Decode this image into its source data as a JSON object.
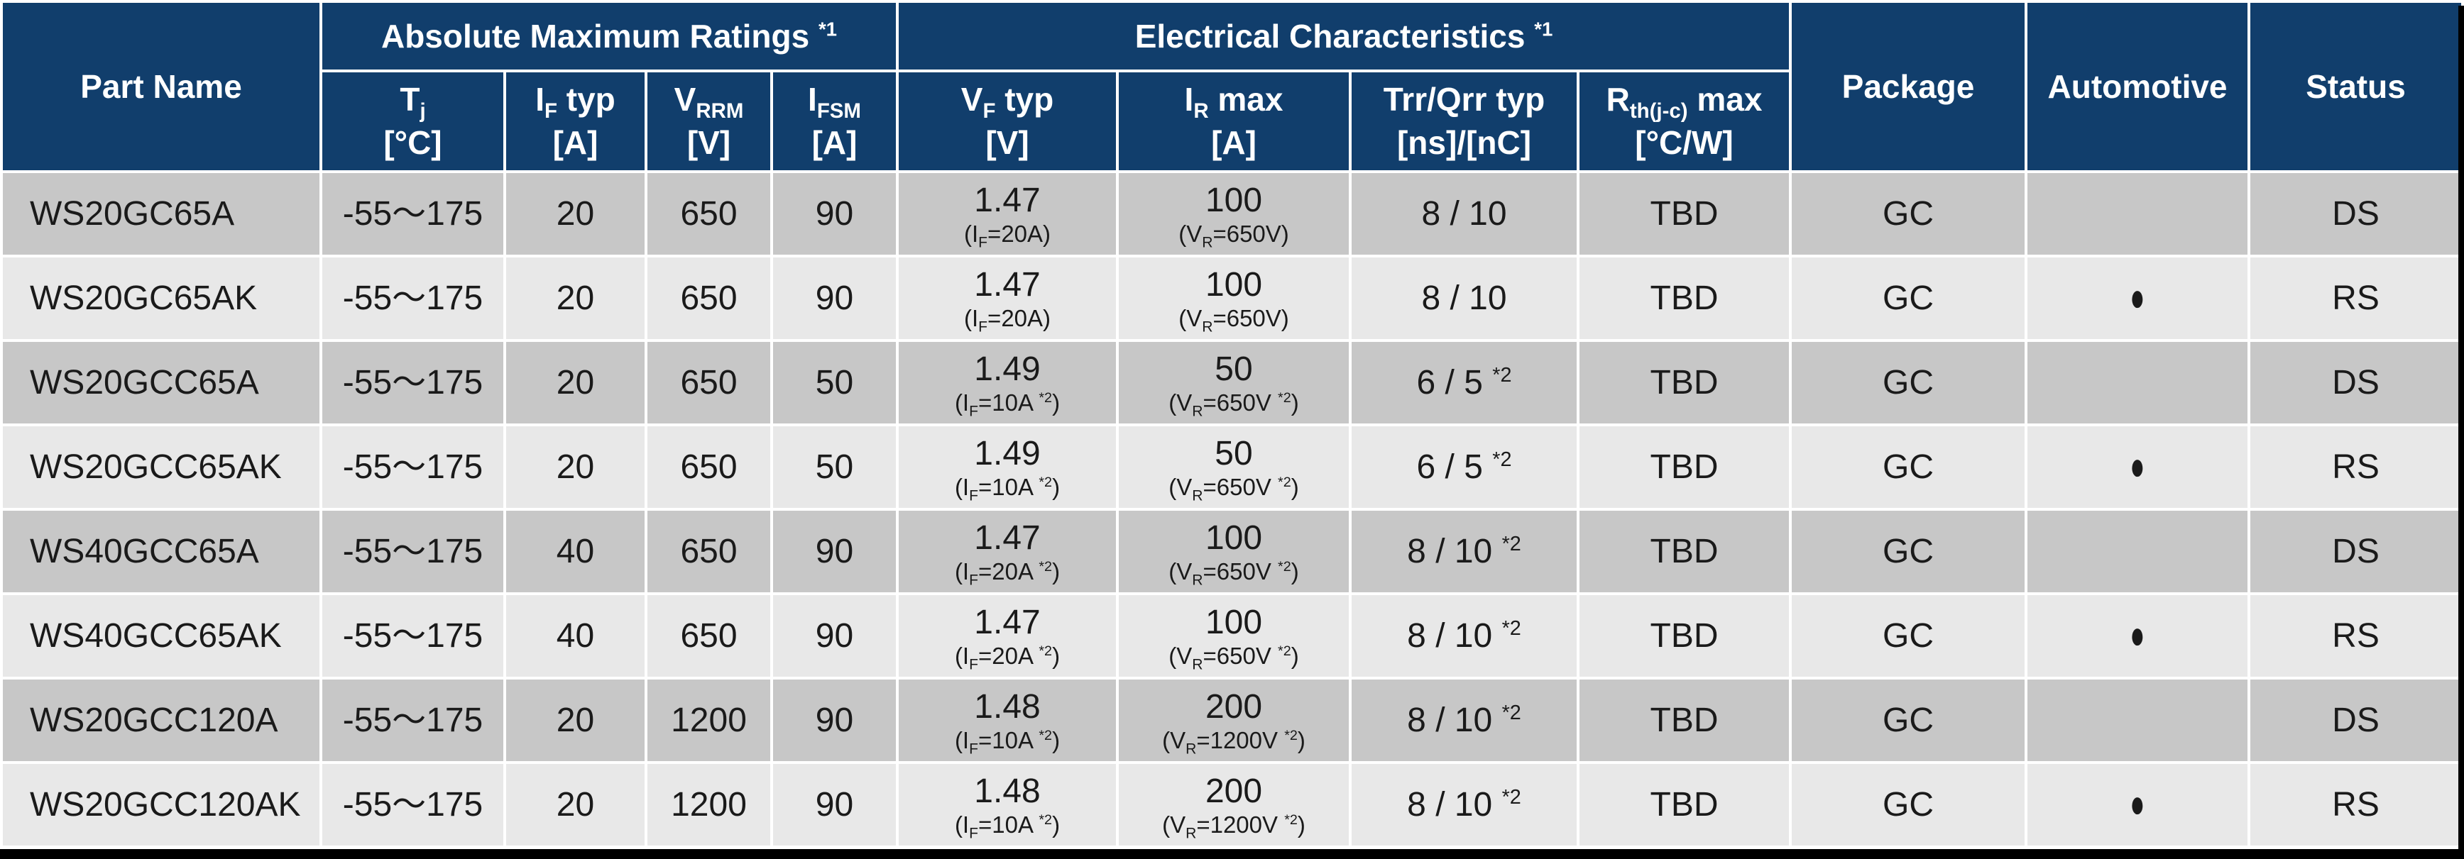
{
  "table": {
    "header": {
      "part_name": "Part Name",
      "groups": [
        {
          "label": "Absolute Maximum Ratings ^{*1}"
        },
        {
          "label": "Electrical Characteristics ^{*1}"
        }
      ],
      "sub_columns": [
        {
          "label": "T_{j}\n[°C]"
        },
        {
          "label": "I_{F} typ\n[A]"
        },
        {
          "label": "V_{RRM}\n[V]"
        },
        {
          "label": "I_{FSM}\n[A]"
        },
        {
          "label": "V_{F} typ\n[V]"
        },
        {
          "label": "I_{R} max\n[A]"
        },
        {
          "label": "Trr/Qrr typ\n[ns]/[nC]"
        },
        {
          "label": "R_{th(j-c)} max\n[°C/W]"
        }
      ],
      "package": "Package",
      "automotive": "Automotive",
      "status": "Status"
    },
    "rows": [
      {
        "name": "WS20GC65A",
        "tj": "-55～175",
        "if_typ": "20",
        "vrrm": "650",
        "ifsm": "90",
        "vf": "1.47",
        "vf_note": "(I_{F}=20A)",
        "ir": "100",
        "ir_note": "(V_{R}=650V)",
        "trr": "8 / 10",
        "rth": "TBD",
        "package": "GC",
        "automotive": "",
        "status": "DS"
      },
      {
        "name": "WS20GC65AK",
        "tj": "-55～175",
        "if_typ": "20",
        "vrrm": "650",
        "ifsm": "90",
        "vf": "1.47",
        "vf_note": "(I_{F}=20A)",
        "ir": "100",
        "ir_note": "(V_{R}=650V)",
        "trr": "8 / 10",
        "rth": "TBD",
        "package": "GC",
        "automotive": "●",
        "status": "RS"
      },
      {
        "name": "WS20GCC65A",
        "tj": "-55～175",
        "if_typ": "20",
        "vrrm": "650",
        "ifsm": "50",
        "vf": "1.49",
        "vf_note": "(I_{F}=10A ^{*2})",
        "ir": "50",
        "ir_note": "(V_{R}=650V ^{*2})",
        "trr": "6 / 5 ^{*2}",
        "rth": "TBD",
        "package": "GC",
        "automotive": "",
        "status": "DS"
      },
      {
        "name": "WS20GCC65AK",
        "tj": "-55～175",
        "if_typ": "20",
        "vrrm": "650",
        "ifsm": "50",
        "vf": "1.49",
        "vf_note": "(I_{F}=10A ^{*2})",
        "ir": "50",
        "ir_note": "(V_{R}=650V ^{*2})",
        "trr": "6 / 5 ^{*2}",
        "rth": "TBD",
        "package": "GC",
        "automotive": "●",
        "status": "RS"
      },
      {
        "name": "WS40GCC65A",
        "tj": "-55～175",
        "if_typ": "40",
        "vrrm": "650",
        "ifsm": "90",
        "vf": "1.47",
        "vf_note": "(I_{F}=20A ^{*2})",
        "ir": "100",
        "ir_note": "(V_{R}=650V ^{*2})",
        "trr": "8 / 10 ^{*2}",
        "rth": "TBD",
        "package": "GC",
        "automotive": "",
        "status": "DS"
      },
      {
        "name": "WS40GCC65AK",
        "tj": "-55～175",
        "if_typ": "40",
        "vrrm": "650",
        "ifsm": "90",
        "vf": "1.47",
        "vf_note": "(I_{F}=20A ^{*2})",
        "ir": "100",
        "ir_note": "(V_{R}=650V ^{*2})",
        "trr": "8 / 10 ^{*2}",
        "rth": "TBD",
        "package": "GC",
        "automotive": "●",
        "status": "RS"
      },
      {
        "name": "WS20GCC120A",
        "tj": "-55～175",
        "if_typ": "20",
        "vrrm": "1200",
        "ifsm": "90",
        "vf": "1.48",
        "vf_note": "(I_{F}=10A ^{*2})",
        "ir": "200",
        "ir_note": "(V_{R}=1200V ^{*2})",
        "trr": "8 / 10 ^{*2}",
        "rth": "TBD",
        "package": "GC",
        "automotive": "",
        "status": "DS"
      },
      {
        "name": "WS20GCC120AK",
        "tj": "-55～175",
        "if_typ": "20",
        "vrrm": "1200",
        "ifsm": "90",
        "vf": "1.48",
        "vf_note": "(I_{F}=10A ^{*2})",
        "ir": "200",
        "ir_note": "(V_{R}=1200V ^{*2})",
        "trr": "8 / 10 ^{*2}",
        "rth": "TBD",
        "package": "GC",
        "automotive": "●",
        "status": "RS"
      }
    ]
  },
  "colors": {
    "header_bg": "#113e6c",
    "row_dark": "#c7c7c7",
    "row_light": "#e8e8e8",
    "gridline": "#ffffff",
    "edge": "#000000"
  }
}
